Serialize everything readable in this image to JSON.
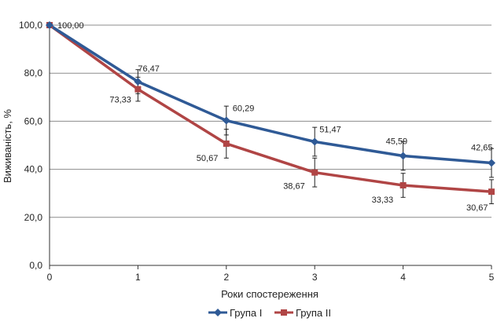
{
  "chart_data": {
    "type": "line",
    "title": "",
    "xlabel": "Роки спостереження",
    "ylabel": "Виживаність, %",
    "x": [
      0,
      1,
      2,
      3,
      4,
      5
    ],
    "x_tick_labels": [
      "0",
      "1",
      "2",
      "3",
      "4",
      "5"
    ],
    "ylim": [
      0,
      100
    ],
    "y_tick_labels": [
      "0,0",
      "20,0",
      "40,0",
      "60,0",
      "80,0",
      "100,0"
    ],
    "grid": "horizontal",
    "legend_position": "bottom",
    "series": [
      {
        "name": "Група І",
        "color": "#2f5a96",
        "marker": "diamond",
        "values": [
          100.0,
          76.47,
          60.29,
          51.47,
          45.59,
          42.65
        ],
        "labels": [
          "100,00",
          "76,47",
          "60,29",
          "51,47",
          "45,59",
          "42,65"
        ],
        "error": [
          0,
          5,
          6,
          6,
          6,
          6
        ]
      },
      {
        "name": "Група ІІ",
        "color": "#b04545",
        "marker": "square",
        "values": [
          100.0,
          73.33,
          50.67,
          38.67,
          33.33,
          30.67
        ],
        "labels": [
          "",
          "73,33",
          "50,67",
          "38,67",
          "33,33",
          "30,67"
        ],
        "error": [
          0,
          5,
          6,
          6,
          5,
          5
        ]
      }
    ]
  }
}
